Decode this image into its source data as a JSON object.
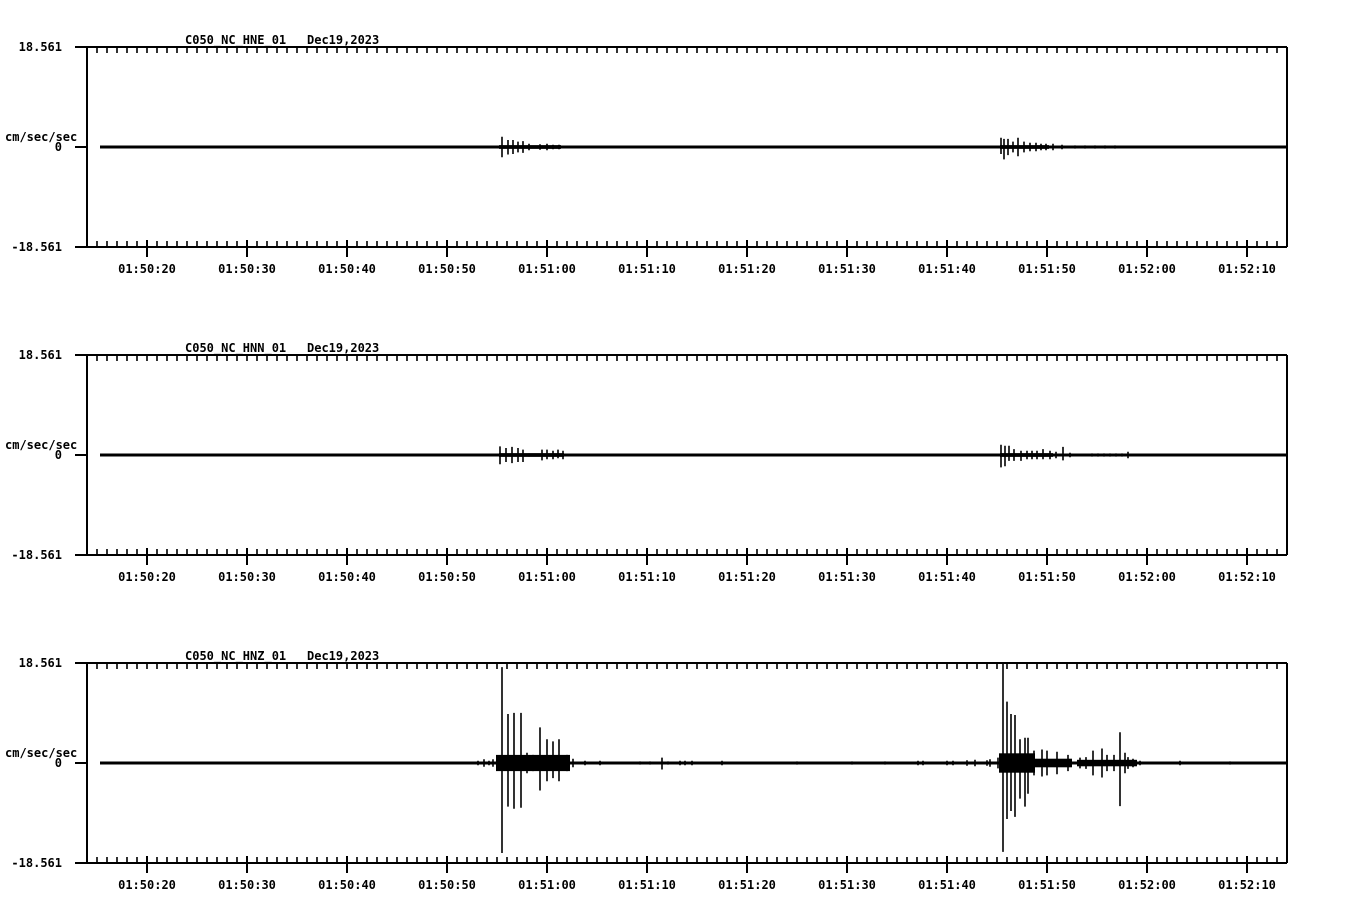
{
  "figure": {
    "background": "#ffffff",
    "ink": "#000000"
  },
  "chart_data": {
    "type": "line",
    "kind": "three-component-seismogram",
    "x": {
      "start": "01:50:14",
      "end": "01:52:14",
      "duration_sec": 120,
      "minor_tick_sec": 1,
      "major_tick_sec": 10,
      "tick_labels": [
        "01:50:20",
        "01:50:30",
        "01:50:40",
        "01:50:50",
        "01:51:00",
        "01:51:10",
        "01:51:20",
        "01:51:30",
        "01:51:40",
        "01:51:50",
        "01:52:00",
        "01:52:10"
      ],
      "tick_offsets_sec": [
        6,
        16,
        26,
        36,
        46,
        56,
        66,
        76,
        86,
        96,
        106,
        116
      ]
    },
    "y": {
      "unit": "cm/sec/sec",
      "max_label": "18.561",
      "zero_label": "0",
      "min_label": "-18.561",
      "limit": 18.561
    },
    "panels": [
      {
        "id": "HNE",
        "title": "C050_NC_HNE_01",
        "date_label": "Dec19,2023",
        "noise_bands": [
          [
            41.2,
            47.4,
            0.35
          ],
          [
            91.3,
            96.2,
            0.35
          ]
        ],
        "spikes": [
          [
            41.5,
            1.9,
            1.9
          ],
          [
            42.1,
            1.3,
            1.4
          ],
          [
            42.6,
            1.3,
            1.3
          ],
          [
            43.1,
            1.0,
            1.0
          ],
          [
            43.6,
            1.1,
            1.1
          ],
          [
            44.2,
            0.6,
            0.6
          ],
          [
            45.3,
            0.5,
            0.5
          ],
          [
            46.0,
            0.6,
            0.6
          ],
          [
            46.6,
            0.4,
            0.4
          ],
          [
            47.2,
            0.4,
            0.4
          ],
          [
            91.4,
            1.7,
            1.3
          ],
          [
            91.7,
            1.5,
            2.3
          ],
          [
            92.1,
            1.5,
            1.5
          ],
          [
            92.6,
            1.0,
            1.0
          ],
          [
            93.1,
            1.7,
            1.7
          ],
          [
            93.7,
            1.0,
            1.0
          ],
          [
            94.3,
            0.8,
            0.8
          ],
          [
            94.9,
            0.8,
            0.8
          ],
          [
            95.4,
            0.6,
            0.6
          ],
          [
            95.9,
            0.6,
            0.6
          ],
          [
            96.6,
            0.6,
            0.6
          ],
          [
            97.5,
            0.4,
            0.4
          ],
          [
            98.8,
            0.3,
            0.3
          ],
          [
            99.8,
            0.3,
            0.3
          ],
          [
            100.8,
            0.3,
            0.3
          ],
          [
            101.8,
            0.3,
            0.3
          ],
          [
            102.8,
            0.3,
            0.3
          ]
        ]
      },
      {
        "id": "HNN",
        "title": "C050_NC_HNN_01",
        "date_label": "Dec19,2023",
        "noise_bands": [
          [
            41.2,
            47.7,
            0.35
          ],
          [
            91.3,
            96.6,
            0.35
          ]
        ],
        "spikes": [
          [
            41.3,
            1.6,
            1.7
          ],
          [
            41.9,
            1.3,
            1.3
          ],
          [
            42.5,
            1.5,
            1.5
          ],
          [
            43.1,
            1.3,
            1.3
          ],
          [
            43.6,
            1.0,
            1.3
          ],
          [
            44.2,
            0.3,
            0.3
          ],
          [
            45.5,
            1.0,
            1.0
          ],
          [
            46.0,
            1.0,
            0.8
          ],
          [
            46.6,
            0.8,
            0.8
          ],
          [
            47.1,
            1.0,
            0.6
          ],
          [
            47.6,
            0.8,
            0.8
          ],
          [
            91.4,
            1.9,
            2.3
          ],
          [
            91.8,
            1.7,
            2.1
          ],
          [
            92.2,
            1.7,
            1.1
          ],
          [
            92.7,
            1.1,
            1.1
          ],
          [
            93.4,
            0.8,
            1.1
          ],
          [
            94.0,
            0.8,
            0.8
          ],
          [
            94.5,
            0.8,
            0.8
          ],
          [
            95.0,
            0.8,
            0.8
          ],
          [
            95.6,
            1.1,
            0.8
          ],
          [
            96.3,
            0.8,
            0.8
          ],
          [
            96.9,
            0.6,
            0.6
          ],
          [
            97.6,
            1.5,
            1.0
          ],
          [
            98.3,
            0.4,
            0.4
          ],
          [
            100.5,
            0.3,
            0.3
          ],
          [
            101.1,
            0.3,
            0.3
          ],
          [
            101.7,
            0.3,
            0.3
          ],
          [
            102.3,
            0.3,
            0.3
          ],
          [
            102.9,
            0.3,
            0.3
          ],
          [
            103.5,
            0.3,
            0.3
          ],
          [
            104.1,
            0.6,
            0.6
          ]
        ]
      },
      {
        "id": "HNZ",
        "title": "C050_NC_HNZ_01",
        "date_label": "Dec19,2023",
        "noise_bands": [
          [
            40.9,
            48.3,
            1.5
          ],
          [
            91.2,
            94.8,
            1.8
          ],
          [
            94.8,
            98.5,
            0.8
          ],
          [
            99.0,
            105.0,
            0.6
          ]
        ],
        "spikes": [
          [
            39.1,
            0.4,
            0.4
          ],
          [
            39.7,
            0.7,
            0.7
          ],
          [
            40.2,
            0.4,
            0.4
          ],
          [
            40.6,
            0.7,
            0.7
          ],
          [
            41.0,
            1.0,
            1.0
          ],
          [
            41.5,
            17.8,
            16.7
          ],
          [
            42.1,
            9.1,
            8.1
          ],
          [
            42.7,
            9.3,
            8.5
          ],
          [
            43.4,
            9.3,
            8.3
          ],
          [
            44.0,
            1.9,
            1.9
          ],
          [
            44.6,
            1.5,
            1.5
          ],
          [
            45.3,
            6.6,
            5.1
          ],
          [
            46.0,
            4.4,
            3.4
          ],
          [
            46.6,
            4.0,
            2.8
          ],
          [
            47.2,
            4.4,
            3.4
          ],
          [
            48.0,
            1.5,
            1.5
          ],
          [
            48.6,
            0.8,
            0.8
          ],
          [
            49.8,
            0.4,
            0.4
          ],
          [
            51.3,
            0.4,
            0.4
          ],
          [
            55.3,
            0.3,
            0.3
          ],
          [
            56.3,
            0.3,
            0.3
          ],
          [
            57.5,
            1.0,
            1.2
          ],
          [
            58.1,
            0.3,
            0.3
          ],
          [
            59.3,
            0.4,
            0.4
          ],
          [
            59.8,
            0.4,
            0.4
          ],
          [
            60.5,
            0.4,
            0.4
          ],
          [
            63.5,
            0.4,
            0.4
          ],
          [
            71.0,
            0.3,
            0.3
          ],
          [
            76.5,
            0.3,
            0.3
          ],
          [
            79.8,
            0.3,
            0.3
          ],
          [
            83.1,
            0.4,
            0.4
          ],
          [
            83.6,
            0.4,
            0.4
          ],
          [
            86.0,
            0.4,
            0.4
          ],
          [
            86.6,
            0.4,
            0.4
          ],
          [
            88.0,
            0.5,
            0.5
          ],
          [
            88.8,
            0.6,
            0.6
          ],
          [
            90.0,
            0.5,
            0.5
          ],
          [
            90.3,
            0.7,
            0.7
          ],
          [
            91.1,
            1.0,
            1.0
          ],
          [
            91.6,
            18.4,
            16.5
          ],
          [
            92.0,
            11.4,
            10.4
          ],
          [
            92.4,
            9.1,
            8.9
          ],
          [
            92.8,
            8.9,
            10.0
          ],
          [
            93.3,
            4.4,
            6.6
          ],
          [
            93.8,
            4.7,
            8.1
          ],
          [
            94.1,
            4.7,
            5.7
          ],
          [
            94.7,
            2.3,
            2.3
          ],
          [
            95.5,
            2.5,
            2.5
          ],
          [
            96.0,
            2.3,
            2.3
          ],
          [
            97.0,
            2.1,
            2.1
          ],
          [
            98.1,
            1.5,
            1.5
          ],
          [
            99.3,
            1.0,
            1.0
          ],
          [
            99.9,
            1.1,
            1.1
          ],
          [
            100.6,
            2.3,
            2.3
          ],
          [
            101.5,
            2.7,
            2.7
          ],
          [
            102.0,
            1.5,
            1.5
          ],
          [
            102.7,
            1.5,
            1.5
          ],
          [
            103.3,
            5.7,
            8.0
          ],
          [
            103.8,
            1.9,
            1.9
          ],
          [
            104.1,
            1.1,
            1.1
          ],
          [
            104.6,
            0.8,
            0.8
          ],
          [
            105.3,
            0.4,
            0.4
          ],
          [
            109.3,
            0.4,
            0.4
          ],
          [
            114.3,
            0.3,
            0.3
          ]
        ]
      }
    ]
  }
}
